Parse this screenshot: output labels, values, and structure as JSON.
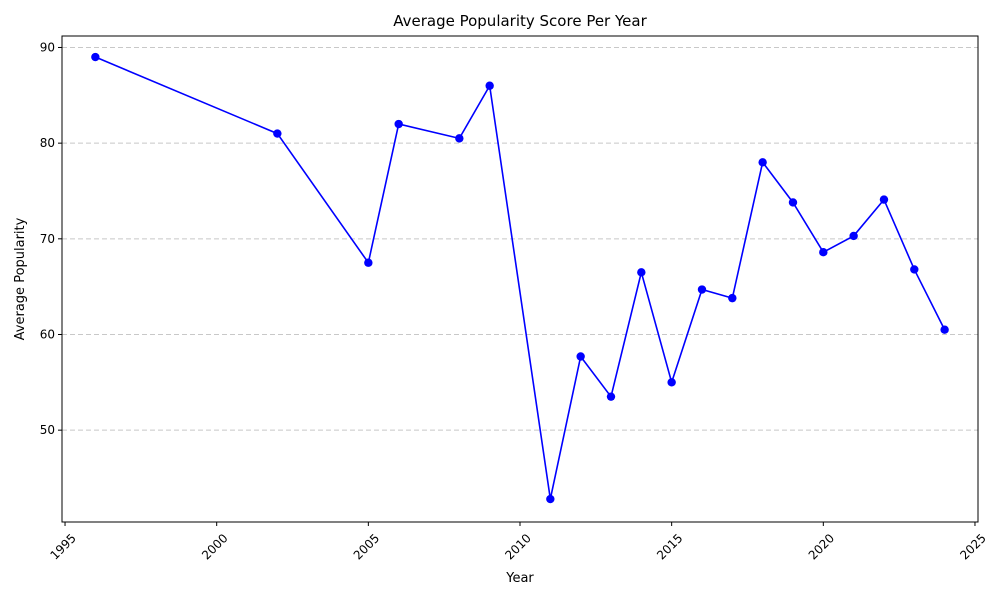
{
  "chart_data": {
    "type": "line",
    "title": "Average Popularity Score Per Year",
    "xlabel": "Year",
    "ylabel": "Average Popularity",
    "xlim": [
      1994.9,
      2025.1
    ],
    "ylim": [
      40.4,
      91.2
    ],
    "x_ticks": [
      1995,
      2000,
      2005,
      2010,
      2015,
      2020,
      2025
    ],
    "y_ticks": [
      50,
      60,
      70,
      80,
      90
    ],
    "grid": "y-dashed",
    "series": [
      {
        "color": "#0000ff",
        "x": [
          1996,
          2002,
          2005,
          2006,
          2008,
          2009,
          2011,
          2012,
          2013,
          2014,
          2015,
          2016,
          2017,
          2018,
          2019,
          2020,
          2021,
          2022,
          2023,
          2024
        ],
        "y": [
          89.0,
          81.0,
          67.5,
          82.0,
          80.5,
          86.0,
          42.8,
          57.7,
          53.5,
          66.5,
          55.0,
          64.7,
          63.8,
          78.0,
          73.8,
          68.6,
          70.3,
          74.1,
          66.8,
          60.5
        ]
      }
    ]
  }
}
